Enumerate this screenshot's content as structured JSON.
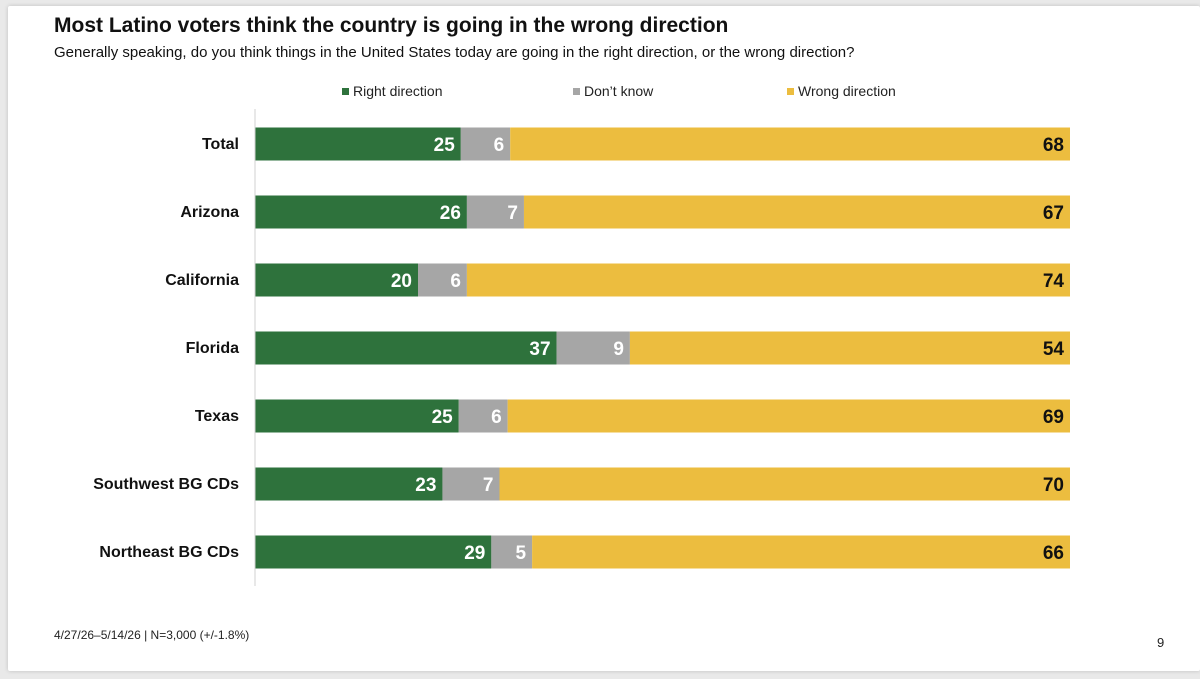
{
  "colors": {
    "right": "#2e723c",
    "dont_know": "#a6a6a6",
    "wrong": "#ecbd3f"
  },
  "chart_data": {
    "type": "bar",
    "orientation": "horizontal",
    "stacked": true,
    "title": "Most Latino voters think the country is going in the wrong direction",
    "subtitle": "Generally speaking, do you think things in the United States today are going in the right direction, or the wrong direction?",
    "categories": [
      "Total",
      "Arizona",
      "California",
      "Florida",
      "Texas",
      "Southwest BG CDs",
      "Northeast BG CDs"
    ],
    "series": [
      {
        "name": "Right direction",
        "values": [
          25,
          26,
          20,
          37,
          25,
          23,
          29
        ]
      },
      {
        "name": "Don’t know",
        "values": [
          6,
          7,
          6,
          9,
          6,
          7,
          5
        ]
      },
      {
        "name": "Wrong direction",
        "values": [
          68,
          67,
          74,
          54,
          69,
          70,
          66
        ]
      }
    ],
    "xlim": [
      0,
      100
    ],
    "legend_position": "top",
    "grid": false
  },
  "footer": {
    "note": "4/27/26–5/14/26   |   N=3,000 (+/-1.8%)",
    "page": "9"
  }
}
